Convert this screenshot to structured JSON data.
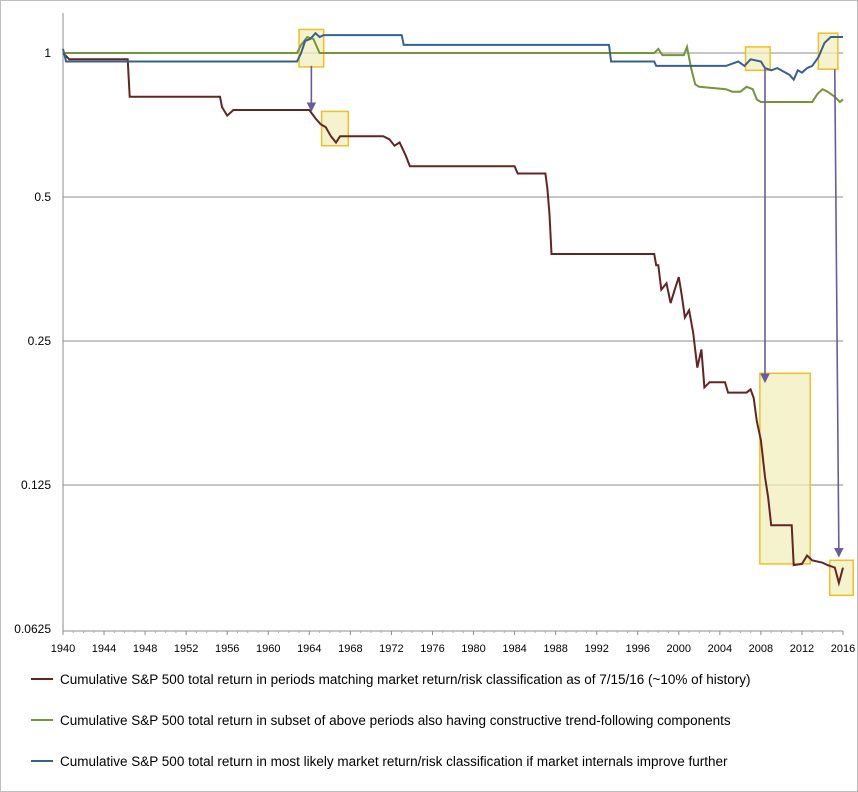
{
  "chart_data": {
    "type": "line",
    "title": "",
    "xlabel": "",
    "ylabel": "",
    "x_scale": "linear",
    "y_scale": "log2",
    "xlim": [
      1940,
      2016
    ],
    "ylim": [
      0.0625,
      1.2
    ],
    "x_ticks": [
      "1940",
      "1944",
      "1948",
      "1952",
      "1956",
      "1960",
      "1964",
      "1968",
      "1972",
      "1976",
      "1980",
      "1984",
      "1988",
      "1992",
      "1996",
      "2000",
      "2004",
      "2008",
      "2012",
      "2016"
    ],
    "y_ticks": [
      {
        "value": 1,
        "label": "1"
      },
      {
        "value": 0.5,
        "label": "0.5"
      },
      {
        "value": 0.25,
        "label": "0.25"
      },
      {
        "value": 0.125,
        "label": "0.125"
      },
      {
        "value": 0.0625,
        "label": "0.0625"
      }
    ],
    "grid": "horizontal",
    "legend_position": "bottom",
    "series": [
      {
        "name": "Cumulative S&P 500 total return in periods matching market return/risk classification as of 7/15/16 (~10% of history)",
        "color": "#632523",
        "points": [
          [
            1940.0,
            1.0
          ],
          [
            1940.6,
            0.97
          ],
          [
            1941.0,
            0.97
          ],
          [
            1946.3,
            0.97
          ],
          [
            1946.5,
            0.81
          ],
          [
            1955.3,
            0.81
          ],
          [
            1955.5,
            0.77
          ],
          [
            1956.0,
            0.74
          ],
          [
            1956.6,
            0.76
          ],
          [
            1964.0,
            0.76
          ],
          [
            1964.6,
            0.73
          ],
          [
            1965.1,
            0.71
          ],
          [
            1965.6,
            0.7
          ],
          [
            1966.1,
            0.67
          ],
          [
            1966.6,
            0.65
          ],
          [
            1967.0,
            0.67
          ],
          [
            1971.2,
            0.67
          ],
          [
            1971.8,
            0.66
          ],
          [
            1972.3,
            0.64
          ],
          [
            1972.8,
            0.65
          ],
          [
            1973.4,
            0.61
          ],
          [
            1973.8,
            0.58
          ],
          [
            1984.0,
            0.58
          ],
          [
            1984.3,
            0.56
          ],
          [
            1987.0,
            0.56
          ],
          [
            1987.2,
            0.52
          ],
          [
            1987.4,
            0.46
          ],
          [
            1987.6,
            0.38
          ],
          [
            1997.6,
            0.38
          ],
          [
            1997.8,
            0.36
          ],
          [
            1998.0,
            0.36
          ],
          [
            1998.3,
            0.32
          ],
          [
            1998.8,
            0.33
          ],
          [
            1999.2,
            0.3
          ],
          [
            1999.6,
            0.32
          ],
          [
            2000.0,
            0.34
          ],
          [
            2000.3,
            0.31
          ],
          [
            2000.6,
            0.28
          ],
          [
            2001.0,
            0.29
          ],
          [
            2001.4,
            0.26
          ],
          [
            2001.8,
            0.22
          ],
          [
            2002.2,
            0.24
          ],
          [
            2002.5,
            0.2
          ],
          [
            2003.0,
            0.205
          ],
          [
            2004.5,
            0.205
          ],
          [
            2004.8,
            0.195
          ],
          [
            2006.6,
            0.195
          ],
          [
            2007.0,
            0.198
          ],
          [
            2007.3,
            0.19
          ],
          [
            2007.6,
            0.17
          ],
          [
            2008.0,
            0.155
          ],
          [
            2008.4,
            0.13
          ],
          [
            2008.7,
            0.118
          ],
          [
            2009.0,
            0.103
          ],
          [
            2011.0,
            0.103
          ],
          [
            2011.2,
            0.085
          ],
          [
            2012.0,
            0.0855
          ],
          [
            2012.5,
            0.089
          ],
          [
            2013.0,
            0.087
          ],
          [
            2014.0,
            0.086
          ],
          [
            2014.5,
            0.085
          ],
          [
            2015.2,
            0.084
          ],
          [
            2015.6,
            0.078
          ],
          [
            2016.0,
            0.084
          ]
        ]
      },
      {
        "name": "Cumulative S&P 500 total return in subset of above periods also having constructive trend-following components",
        "color": "#77933c",
        "points": [
          [
            1940.0,
            1.0
          ],
          [
            1962.8,
            1.0
          ],
          [
            1963.2,
            1.04
          ],
          [
            1963.8,
            1.08
          ],
          [
            1964.4,
            1.07
          ],
          [
            1965.0,
            1.0
          ],
          [
            1997.6,
            1.0
          ],
          [
            1998.0,
            1.02
          ],
          [
            1998.4,
            0.99
          ],
          [
            2000.5,
            0.99
          ],
          [
            2000.8,
            1.03
          ],
          [
            2001.2,
            0.93
          ],
          [
            2001.6,
            0.86
          ],
          [
            2002.0,
            0.85
          ],
          [
            2004.6,
            0.84
          ],
          [
            2005.2,
            0.83
          ],
          [
            2006.0,
            0.83
          ],
          [
            2006.6,
            0.85
          ],
          [
            2007.2,
            0.84
          ],
          [
            2007.6,
            0.8
          ],
          [
            2008.0,
            0.79
          ],
          [
            2013.0,
            0.79
          ],
          [
            2013.5,
            0.82
          ],
          [
            2014.0,
            0.84
          ],
          [
            2014.5,
            0.83
          ],
          [
            2015.2,
            0.81
          ],
          [
            2015.7,
            0.79
          ],
          [
            2016.0,
            0.8
          ]
        ]
      },
      {
        "name": "Cumulative S&P 500 total return in most likely market return/risk classification if market internals improve further",
        "color": "#376092",
        "points": [
          [
            1940.0,
            1.02
          ],
          [
            1940.3,
            0.96
          ],
          [
            1962.8,
            0.96
          ],
          [
            1963.2,
            1.0
          ],
          [
            1963.6,
            1.06
          ],
          [
            1964.1,
            1.07
          ],
          [
            1964.6,
            1.1
          ],
          [
            1965.0,
            1.08
          ],
          [
            1965.4,
            1.09
          ],
          [
            1973.0,
            1.09
          ],
          [
            1973.2,
            1.04
          ],
          [
            1993.2,
            1.04
          ],
          [
            1993.4,
            0.96
          ],
          [
            1997.6,
            0.96
          ],
          [
            1997.8,
            0.94
          ],
          [
            2004.6,
            0.94
          ],
          [
            2005.2,
            0.95
          ],
          [
            2005.8,
            0.96
          ],
          [
            2006.4,
            0.94
          ],
          [
            2007.0,
            0.97
          ],
          [
            2008.0,
            0.96
          ],
          [
            2008.4,
            0.93
          ],
          [
            2009.0,
            0.92
          ],
          [
            2009.6,
            0.93
          ],
          [
            2010.4,
            0.91
          ],
          [
            2010.8,
            0.9
          ],
          [
            2011.2,
            0.88
          ],
          [
            2011.6,
            0.92
          ],
          [
            2012.0,
            0.91
          ],
          [
            2012.5,
            0.93
          ],
          [
            2013.0,
            0.94
          ],
          [
            2013.6,
            0.98
          ],
          [
            2014.2,
            1.05
          ],
          [
            2014.8,
            1.08
          ],
          [
            2016.0,
            1.08
          ]
        ]
      }
    ]
  }
}
